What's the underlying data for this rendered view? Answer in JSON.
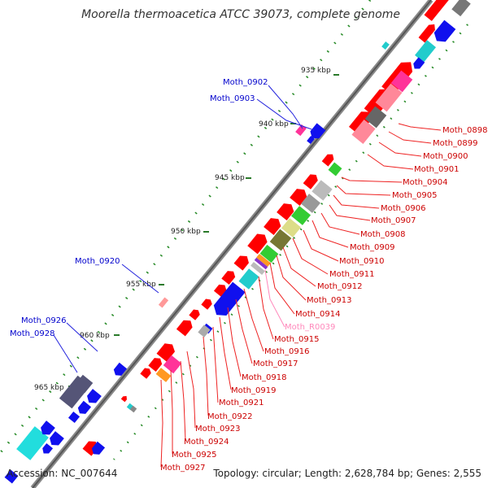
{
  "title": "Moorella thermoacetica ATCC 39073, complete genome",
  "footer": {
    "accession": "Accession: NC_007644",
    "summary": "Topology: circular; Length: 2,628,784 bp; Genes: 2,555"
  },
  "scale_ticks": [
    "935 kbp",
    "940 kbp",
    "945 kbp",
    "950 kbp",
    "955 kbp",
    "960 kbp",
    "965 kbp"
  ],
  "colors": {
    "red": "#ff0000",
    "blue": "#1010ee",
    "pink": "#ff3399",
    "light_pink": "#ff9999",
    "cyan": "#22cccc",
    "green": "#33cc33",
    "gray": "#999999",
    "purple": "#555577",
    "olive": "#777733",
    "khaki": "#dddd88",
    "orange": "#ff9922",
    "label_blue": "#0000cc",
    "label_red": "#cc0000",
    "label_pink": "#ff88bb"
  },
  "genes_left": [
    {
      "name": "Moth_0902",
      "color": "blue"
    },
    {
      "name": "Moth_0903",
      "color": "blue"
    },
    {
      "name": "Moth_0920",
      "color": "blue"
    },
    {
      "name": "Moth_0926",
      "color": "blue"
    },
    {
      "name": "Moth_0928",
      "color": "blue"
    }
  ],
  "genes_right": [
    {
      "name": "Moth_0898",
      "color": "red"
    },
    {
      "name": "Moth_0899",
      "color": "red"
    },
    {
      "name": "Moth_0900",
      "color": "red"
    },
    {
      "name": "Moth_0901",
      "color": "red"
    },
    {
      "name": "Moth_0904",
      "color": "red"
    },
    {
      "name": "Moth_0905",
      "color": "red"
    },
    {
      "name": "Moth_0906",
      "color": "red"
    },
    {
      "name": "Moth_0907",
      "color": "red"
    },
    {
      "name": "Moth_0908",
      "color": "red"
    },
    {
      "name": "Moth_0909",
      "color": "red"
    },
    {
      "name": "Moth_0910",
      "color": "red"
    },
    {
      "name": "Moth_0911",
      "color": "red"
    },
    {
      "name": "Moth_0912",
      "color": "red"
    },
    {
      "name": "Moth_0913",
      "color": "red"
    },
    {
      "name": "Moth_0914",
      "color": "red"
    },
    {
      "name": "Moth_R0039",
      "color": "pink"
    },
    {
      "name": "Moth_0915",
      "color": "red"
    },
    {
      "name": "Moth_0916",
      "color": "red"
    },
    {
      "name": "Moth_0917",
      "color": "red"
    },
    {
      "name": "Moth_0918",
      "color": "red"
    },
    {
      "name": "Moth_0919",
      "color": "red"
    },
    {
      "name": "Moth_0921",
      "color": "red"
    },
    {
      "name": "Moth_0922",
      "color": "red"
    },
    {
      "name": "Moth_0923",
      "color": "red"
    },
    {
      "name": "Moth_0924",
      "color": "red"
    },
    {
      "name": "Moth_0925",
      "color": "red"
    },
    {
      "name": "Moth_0927",
      "color": "red"
    }
  ]
}
